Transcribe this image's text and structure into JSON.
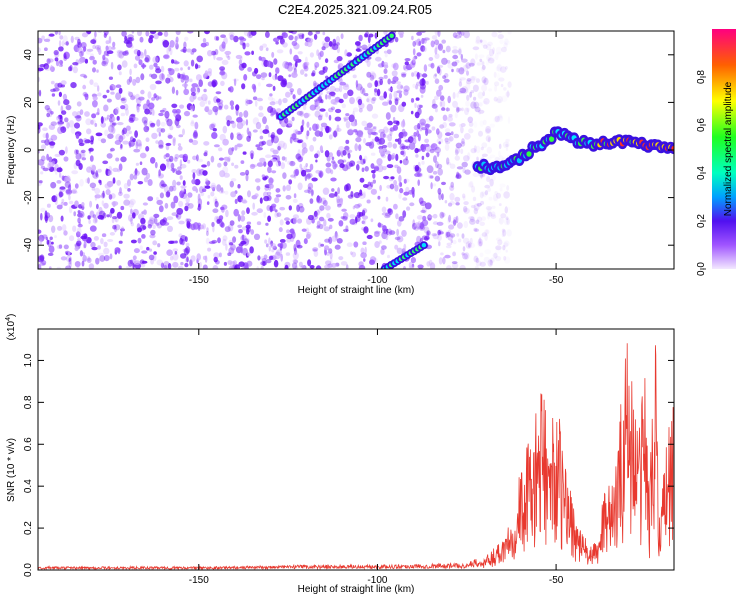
{
  "title": "C2E4.2025.321.09.24.R05",
  "chart_data": [
    {
      "type": "heatmap",
      "name": "spectrogram",
      "xlabel": "Height of straight line (km)",
      "ylabel": "Frequency (Hz)",
      "xlim": [
        -195,
        -17
      ],
      "ylim": [
        -50,
        50
      ],
      "xticks": [
        -150,
        -100,
        -50
      ],
      "yticks": [
        -40,
        -20,
        0,
        20,
        40
      ],
      "noise_region_x": [
        -195,
        -75
      ],
      "tracks": [
        {
          "name": "upper-diagonal",
          "x": [
            -127,
            -96
          ],
          "y": [
            14,
            48
          ]
        },
        {
          "name": "lower-diagonal",
          "x": [
            -98,
            -87
          ],
          "y": [
            -50,
            -40
          ]
        },
        {
          "name": "main-signal",
          "x": [
            -72,
            -62,
            -55,
            -50,
            -45,
            -40,
            -35,
            -30,
            -25,
            -20,
            -17
          ],
          "y": [
            -8,
            -5,
            2,
            7,
            4,
            3,
            3,
            4,
            2,
            1,
            1
          ]
        }
      ],
      "colorbar": {
        "label": "Normalized spectral amplitude",
        "ticks": [
          "0.0",
          "0.2",
          "0.4",
          "0.6",
          "0.8"
        ],
        "range": [
          0,
          1
        ]
      }
    },
    {
      "type": "line",
      "name": "snr",
      "xlabel": "Height of straight line (km)",
      "ylabel": "SNR (10 * v/v)",
      "y_multiplier": "(x10",
      "y_multiplier_exp": "4",
      "y_multiplier_close": ")",
      "xlim": [
        -195,
        -17
      ],
      "ylim": [
        0,
        1.15
      ],
      "xticks": [
        -150,
        -100,
        -50
      ],
      "yticks": [
        "0.0",
        "0.2",
        "0.4",
        "0.6",
        "0.8",
        "1.0"
      ],
      "series": [
        {
          "name": "SNR",
          "color": "#e8392f",
          "x": [
            -195,
            -150,
            -120,
            -100,
            -80,
            -75,
            -70,
            -65,
            -62,
            -60,
            -58,
            -56,
            -55,
            -53,
            -52,
            -50,
            -48,
            -46,
            -44,
            -42,
            -40,
            -38,
            -36,
            -34,
            -32,
            -30,
            -28,
            -27,
            -26,
            -25,
            -24,
            -22,
            -21,
            -20,
            -19,
            -18,
            -17
          ],
          "y": [
            0.01,
            0.01,
            0.015,
            0.015,
            0.02,
            0.02,
            0.05,
            0.15,
            0.3,
            0.45,
            0.55,
            0.65,
            0.75,
            0.8,
            0.55,
            0.8,
            0.5,
            0.4,
            0.2,
            0.15,
            0.1,
            0.15,
            0.5,
            0.35,
            0.7,
            1.15,
            0.75,
            0.6,
            0.8,
            1.0,
            0.3,
            1.15,
            0.2,
            0.5,
            0.6,
            0.7,
            0.75
          ]
        }
      ]
    }
  ],
  "colors": {
    "noise_purple": "#7a1fff",
    "signal_red": "#e8392f"
  }
}
